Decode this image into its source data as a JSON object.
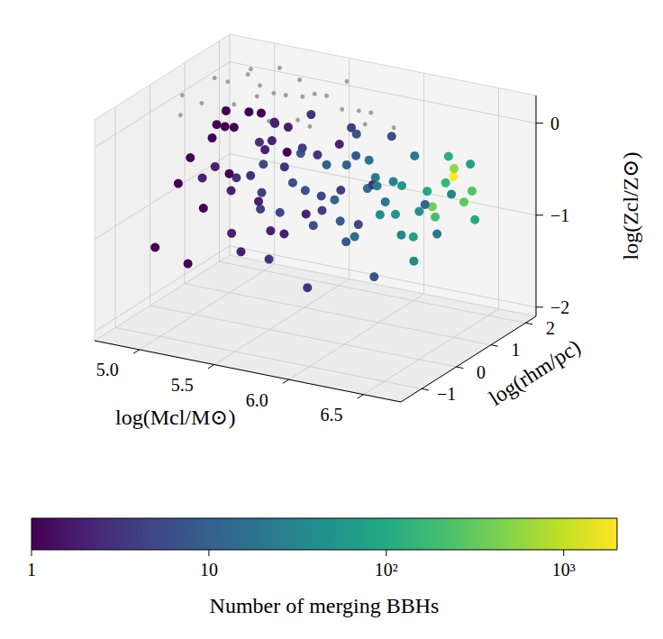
{
  "chart_data": {
    "type": "scatter3d",
    "xlabel": "log(Mcl/M⊙)",
    "ylabel": "log(rhm/pc)",
    "zlabel": "log(Zcl/Z⊙)",
    "xlim": [
      4.7,
      6.75
    ],
    "xticks": [
      {
        "value": 5,
        "label": "5.0"
      },
      5.5,
      {
        "value": 6,
        "label": "6.0"
      },
      6.5
    ],
    "ylim": [
      -1.6,
      2.3
    ],
    "yticks": [
      {
        "value": -1,
        "label": "−1"
      },
      0,
      1,
      2
    ],
    "zlim": [
      -2.1,
      0.3
    ],
    "zticks": [
      {
        "value": -2,
        "label": "−2"
      },
      {
        "value": -1,
        "label": "−1"
      },
      0
    ],
    "grid": true,
    "series": [
      {
        "color": "#a0a0a0",
        "x": [
          4.8,
          4.9,
          5.0,
          5.05,
          5.1,
          5.15,
          5.2,
          5.25,
          5.3,
          5.35,
          5.4,
          5.45,
          5.5,
          5.55,
          5.6,
          5.65,
          5.7,
          5.75,
          5.8,
          5.9,
          6.0,
          6.1,
          4.85,
          4.95,
          5.1,
          5.25,
          5.4
        ],
        "y": [
          0.5,
          1.0,
          0.2,
          1.4,
          0.7,
          1.8,
          0.0,
          1.2,
          0.5,
          1.6,
          0.9,
          0.2,
          1.3,
          0.6,
          1.8,
          1.0,
          0.3,
          1.5,
          0.8,
          1.2,
          0.6,
          1.0,
          1.6,
          -0.2,
          1.1,
          0.8,
          1.3
        ],
        "z": [
          0.1,
          0.2,
          0.15,
          0.25,
          0.05,
          0.2,
          0.2,
          0.1,
          0.25,
          0.0,
          0.2,
          0.1,
          0.15,
          0.05,
          0.2,
          0.25,
          0.1,
          0.0,
          0.2,
          0.1,
          0.15,
          0.05,
          0.0,
          0.1,
          0.28,
          0.28,
          0.27
        ]
      },
      {
        "x": [
          4.9,
          4.95,
          5.0,
          5.0,
          5.05,
          5.1,
          5.1,
          5.15,
          5.2,
          5.2,
          5.25,
          5.3,
          5.3,
          5.35,
          5.4,
          5.4,
          5.45,
          5.5,
          5.5,
          5.55,
          5.6,
          5.6,
          5.65,
          5.7,
          5.7,
          5.75,
          5.8,
          5.8,
          5.85,
          5.9,
          5.9,
          5.95,
          6.0,
          6.0,
          6.05,
          6.1,
          6.1,
          6.15,
          6.2,
          6.2,
          6.25,
          6.3,
          6.3,
          6.35,
          6.4,
          6.4,
          6.45,
          6.5,
          6.5,
          6.55,
          6.55,
          6.6,
          4.85,
          5.0,
          5.1,
          5.2,
          5.3,
          5.35,
          5.45,
          5.55,
          5.6,
          5.7,
          5.8,
          5.9,
          6.0,
          6.1,
          6.2,
          6.3,
          4.75,
          4.9,
          5.05,
          5.15,
          5.25,
          5.35,
          5.45,
          5.5,
          5.65,
          5.75,
          5.85,
          5.95,
          6.05,
          6.15,
          6.25,
          6.35,
          6.45,
          5.0,
          5.1,
          5.2,
          5.3,
          5.4
        ],
        "y": [
          0.3,
          0.8,
          0.5,
          1.2,
          0.0,
          0.7,
          1.5,
          0.4,
          1.0,
          0.2,
          0.9,
          1.4,
          0.6,
          0.1,
          1.1,
          0.5,
          1.6,
          0.3,
          0.9,
          1.3,
          0.6,
          0.0,
          1.0,
          0.4,
          1.5,
          0.8,
          1.2,
          0.2,
          0.7,
          1.1,
          0.5,
          1.4,
          0.9,
          0.3,
          1.2,
          0.6,
          1.6,
          1.0,
          0.8,
          1.3,
          0.4,
          1.1,
          0.7,
          1.5,
          0.9,
          1.2,
          0.6,
          1.0,
          1.3,
          0.8,
          1.4,
          1.1,
          -0.5,
          -0.2,
          0.9,
          1.8,
          -0.3,
          1.7,
          0.2,
          1.8,
          -0.4,
          1.7,
          -0.2,
          1.8,
          -0.1,
          1.9,
          0.0,
          1.8,
          0.6,
          1.3,
          1.7,
          -0.4,
          1.5,
          0.8,
          -0.1,
          1.2,
          0.3,
          1.9,
          1.0,
          0.1,
          0.5,
          0.3,
          1.6,
          0.5,
          1.7,
          0.9,
          0.2,
          0.7,
          1.0,
          0.3
        ],
        "z": [
          -0.5,
          -0.7,
          -0.3,
          -0.9,
          -0.6,
          -0.2,
          -1.1,
          -0.8,
          -0.4,
          -1.2,
          -0.6,
          -0.3,
          -1.0,
          -0.5,
          -0.8,
          -0.2,
          -0.6,
          -0.9,
          -0.4,
          -1.1,
          -0.7,
          -0.3,
          -0.5,
          -1.0,
          -0.2,
          -0.8,
          -0.4,
          -0.6,
          -1.2,
          -0.7,
          -0.3,
          -0.9,
          -0.5,
          -1.0,
          -0.6,
          -0.8,
          -0.4,
          -1.1,
          -0.5,
          -0.9,
          -0.7,
          -0.6,
          -1.0,
          -0.3,
          -0.8,
          -0.5,
          -0.6,
          -0.35,
          -0.7,
          -0.2,
          -0.9,
          -0.5,
          -1.3,
          -1.5,
          -1.6,
          -0.7,
          -0.4,
          -1.3,
          -1.4,
          -0.5,
          -0.9,
          -1.3,
          -1.5,
          -0.3,
          -0.4,
          -1.0,
          -1.3,
          -0.8,
          -0.9,
          -0.4,
          -0.3,
          -0.8,
          -1.5,
          -0.1,
          -0.7,
          -0.05,
          -0.15,
          -0.9,
          -0.1,
          -0.8,
          -0.2,
          -0.4,
          -1.2,
          -1.2,
          -0.4,
          -0.1,
          -0.05,
          0.0,
          -0.15,
          -0.25
        ],
        "counts": [
          1,
          2,
          1,
          3,
          2,
          1,
          4,
          2,
          3,
          2,
          5,
          2,
          4,
          3,
          6,
          2,
          3,
          5,
          8,
          4,
          7,
          3,
          10,
          6,
          4,
          12,
          9,
          5,
          8,
          15,
          11,
          20,
          25,
          14,
          30,
          40,
          22,
          35,
          60,
          45,
          50,
          90,
          70,
          120,
          200,
          150,
          400,
          2000,
          300,
          600,
          100,
          250,
          1,
          1,
          2,
          1,
          1,
          2,
          3,
          2,
          2,
          5,
          3,
          6,
          4,
          12,
          8,
          30,
          1,
          1,
          1,
          1,
          2,
          2,
          2,
          3,
          4,
          3,
          7,
          9,
          18,
          25,
          20,
          40,
          80,
          1,
          1,
          1,
          2,
          2
        ]
      }
    ],
    "colorbar": {
      "label": "Number of merging BBHs",
      "range": [
        1,
        2000
      ],
      "log": true,
      "ticks": [
        1,
        10,
        {
          "value": 100,
          "label": "10²"
        },
        {
          "value": 1000,
          "label": "10³"
        }
      ]
    }
  }
}
